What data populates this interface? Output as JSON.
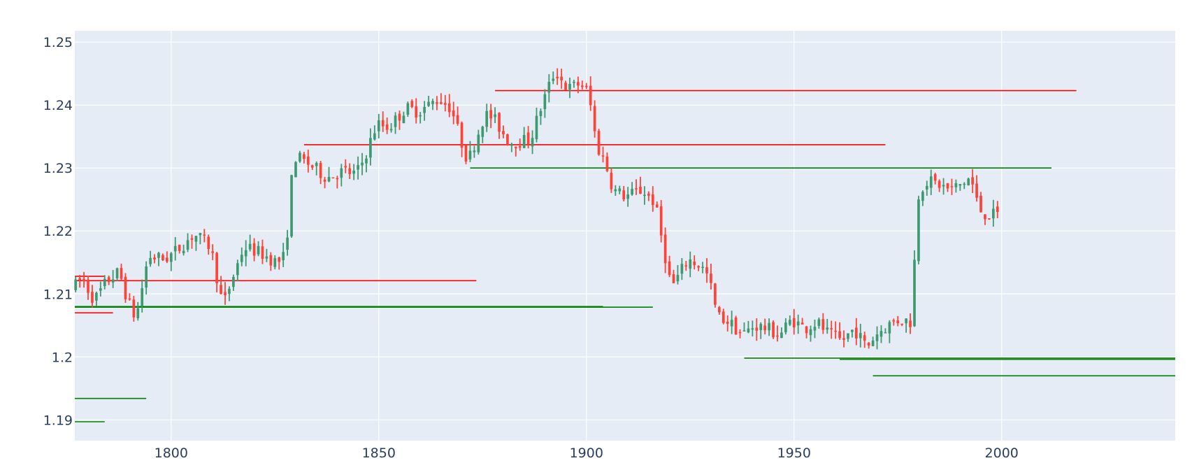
{
  "chart_data": {
    "type": "candlestick",
    "title": "",
    "xlabel": "",
    "ylabel": "",
    "xlim": [
      1776.8,
      2041.8
    ],
    "ylim": [
      1.1867,
      1.2518
    ],
    "x_ticks": [
      1800,
      1850,
      1900,
      1950,
      2000
    ],
    "x_tick_labels": [
      "1800",
      "1850",
      "1900",
      "1950",
      "2000"
    ],
    "y_ticks": [
      1.19,
      1.2,
      1.21,
      1.22,
      1.23,
      1.24,
      1.25
    ],
    "y_tick_labels": [
      "1.19",
      "1.2",
      "1.21",
      "1.22",
      "1.23",
      "1.24",
      "1.25"
    ],
    "grid": true,
    "legend": "none",
    "colors": {
      "plot_bg": "#e5ecf6",
      "grid": "#ffffff",
      "up": "#3d9970",
      "down": "#ff4136",
      "resistance": "#ff0000",
      "support": "#008000"
    },
    "level_lines": [
      {
        "kind": "resistance",
        "x0": 1776.8,
        "x1": 1784.0,
        "y": 1.2128
      },
      {
        "kind": "resistance",
        "x0": 1776.8,
        "x1": 1873.5,
        "y": 1.2121
      },
      {
        "kind": "resistance",
        "x0": 1776.8,
        "x1": 1786.0,
        "y": 1.207
      },
      {
        "kind": "support",
        "x0": 1776.8,
        "x1": 1904.0,
        "y": 1.208
      },
      {
        "kind": "support",
        "x0": 1776.8,
        "x1": 1916.0,
        "y": 1.2079
      },
      {
        "kind": "resistance",
        "x0": 1832.0,
        "x1": 1972.0,
        "y": 1.2337
      },
      {
        "kind": "resistance",
        "x0": 1878.0,
        "x1": 2018.0,
        "y": 1.2423
      },
      {
        "kind": "support",
        "x0": 1872.0,
        "x1": 2012.0,
        "y": 1.23
      },
      {
        "kind": "support",
        "x0": 1938.0,
        "x1": 2041.8,
        "y": 1.1998
      },
      {
        "kind": "support",
        "x0": 1961.0,
        "x1": 2041.8,
        "y": 1.1996
      },
      {
        "kind": "support",
        "x0": 1969.0,
        "x1": 2041.8,
        "y": 1.197
      },
      {
        "kind": "support",
        "x0": 1776.8,
        "x1": 1794.0,
        "y": 1.1934
      },
      {
        "kind": "support",
        "x0": 1776.8,
        "x1": 1784.0,
        "y": 1.1897
      }
    ],
    "path_waypoints": {
      "x": [
        1777,
        1779,
        1782,
        1785,
        1788,
        1790,
        1792,
        1795,
        1799,
        1802,
        1806,
        1810,
        1813,
        1815,
        1818,
        1822,
        1826,
        1828,
        1830,
        1834,
        1838,
        1842,
        1845,
        1847,
        1850,
        1853,
        1857,
        1860,
        1865,
        1868,
        1870,
        1872,
        1876,
        1878,
        1882,
        1887,
        1890,
        1893,
        1896,
        1899,
        1901,
        1903,
        1905,
        1907,
        1910,
        1914,
        1917,
        1919,
        1921,
        1925,
        1928,
        1930,
        1932,
        1935,
        1938,
        1941,
        1944,
        1947,
        1950,
        1953,
        1956,
        1959,
        1962,
        1965,
        1968,
        1970,
        1973,
        1976,
        1979,
        1980,
        1982,
        1985,
        1988,
        1991,
        1993,
        1995,
        1997,
        1999
      ],
      "y": [
        1.211,
        1.2125,
        1.209,
        1.212,
        1.2135,
        1.209,
        1.206,
        1.216,
        1.2155,
        1.217,
        1.2195,
        1.2175,
        1.208,
        1.212,
        1.2175,
        1.2165,
        1.215,
        1.216,
        1.232,
        1.2305,
        1.2285,
        1.2295,
        1.229,
        1.2315,
        1.237,
        1.2365,
        1.2395,
        1.239,
        1.241,
        1.2395,
        1.235,
        1.231,
        1.2385,
        1.238,
        1.234,
        1.2345,
        1.2405,
        1.2455,
        1.2425,
        1.2435,
        1.242,
        1.2335,
        1.231,
        1.2265,
        1.2255,
        1.2265,
        1.2245,
        1.2175,
        1.211,
        1.2155,
        1.2145,
        1.2125,
        1.2065,
        1.2055,
        1.2035,
        1.205,
        1.2045,
        1.2035,
        1.206,
        1.2045,
        1.2055,
        1.2035,
        1.2025,
        1.2045,
        1.2015,
        1.2035,
        1.205,
        1.206,
        1.2055,
        1.225,
        1.228,
        1.2275,
        1.2265,
        1.2275,
        1.2285,
        1.2235,
        1.2225,
        1.2225
      ]
    },
    "candle_count": 223,
    "candle_start_x": 1777,
    "candle_step": 1,
    "noise_seed": 7
  }
}
